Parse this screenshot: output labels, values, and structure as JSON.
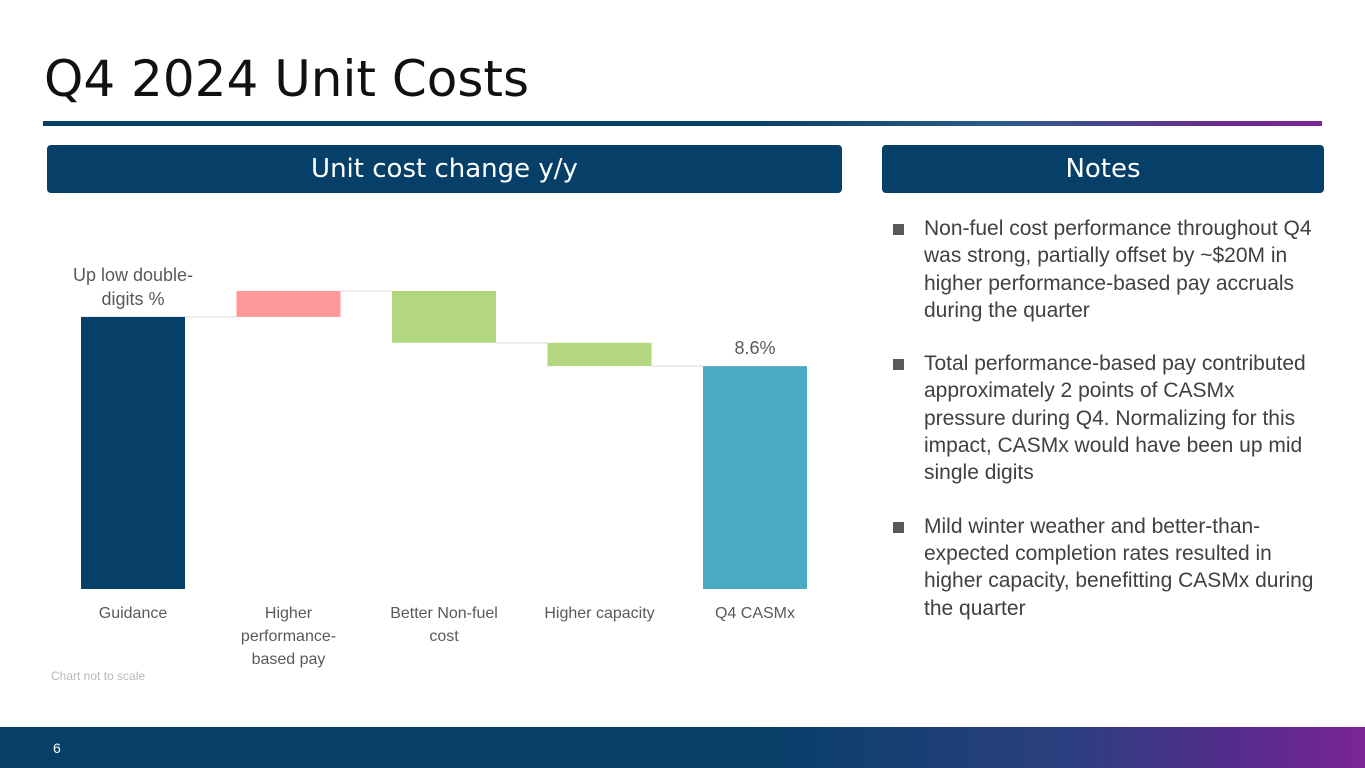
{
  "title": "Q4 2024 Unit Costs",
  "chart_panel": {
    "header": "Unit cost change y/y"
  },
  "notes_panel": {
    "header": "Notes",
    "items": [
      "Non-fuel cost performance throughout Q4 was strong, partially offset by ~$20M in higher performance-based pay accruals during the quarter",
      "Total performance-based pay contributed approximately 2 points of CASMx pressure during Q4. Normalizing for this impact, CASMx would have been up mid single digits",
      "Mild winter weather and better-than-expected completion rates resulted in higher capacity, benefitting CASMx during the quarter"
    ]
  },
  "chart_data": {
    "type": "waterfall",
    "title": "",
    "xlabel": "",
    "ylabel": "",
    "note": "Chart not to scale",
    "categories": [
      "Guidance",
      "Higher performance-based pay",
      "Better Non-fuel cost",
      "Higher capacity",
      "Q4 CASMx"
    ],
    "category_lines": [
      [
        "Guidance"
      ],
      [
        "Higher",
        "performance-",
        "based pay"
      ],
      [
        "Better Non-fuel",
        "cost"
      ],
      [
        "Higher capacity"
      ],
      [
        "Q4 CASMx"
      ]
    ],
    "bars": [
      {
        "category": "Guidance",
        "kind": "total",
        "start": 0,
        "end": 10.5,
        "label_lines": [
          "Up low double-",
          "digits %"
        ],
        "color": "#063f67"
      },
      {
        "category": "Higher performance-based pay",
        "kind": "increase",
        "start": 10.5,
        "end": 11.5,
        "label_lines": [],
        "color": "#ff9999"
      },
      {
        "category": "Better Non-fuel cost",
        "kind": "decrease",
        "start": 11.5,
        "end": 9.5,
        "label_lines": [],
        "color": "#b3d77e"
      },
      {
        "category": "Higher capacity",
        "kind": "decrease",
        "start": 9.5,
        "end": 8.6,
        "label_lines": [],
        "color": "#b3d77e"
      },
      {
        "category": "Q4 CASMx",
        "kind": "total",
        "start": 0,
        "end": 8.6,
        "label_lines": [
          "8.6%"
        ],
        "color": "#4aaac4"
      }
    ],
    "ylim": [
      0,
      11.5
    ],
    "connector_color": "#d9d9d9"
  },
  "page_number": "6"
}
